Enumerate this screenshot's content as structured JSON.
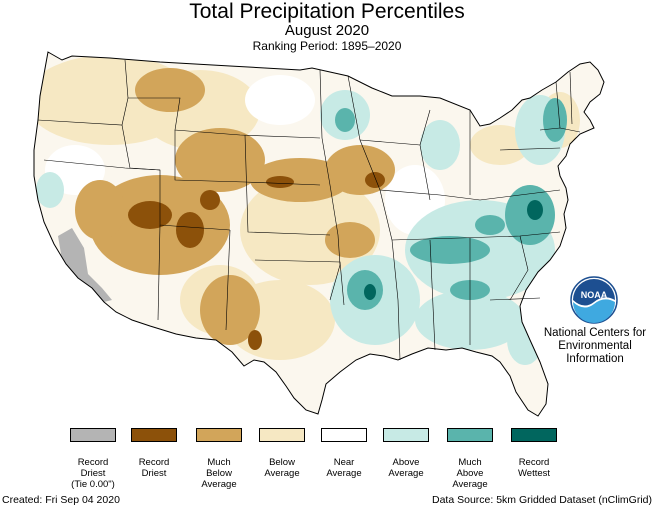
{
  "title": "Total Precipitation Percentiles",
  "subtitle": "August 2020",
  "ranking_period": "Ranking Period: 1895–2020",
  "agency": {
    "line1": "National Centers for",
    "line2": "Environmental",
    "line3": "Information",
    "logo_text": "NOAA"
  },
  "legend": [
    {
      "label": "Record\nDriest\n(Tie 0.00\")",
      "color": "#b4b4b4"
    },
    {
      "label": "Record\nDriest",
      "color": "#8c510a"
    },
    {
      "label": "Much\nBelow\nAverage",
      "color": "#d2a55a"
    },
    {
      "label": "Below\nAverage",
      "color": "#f6e8c3"
    },
    {
      "label": "Near\nAverage",
      "color": "#ffffff"
    },
    {
      "label": "Above\nAverage",
      "color": "#c7eae5"
    },
    {
      "label": "Much\nAbove\nAverage",
      "color": "#5ab4ac"
    },
    {
      "label": "Record\nWettest",
      "color": "#01665e"
    }
  ],
  "footer": {
    "created": "Created: Fri Sep 04 2020",
    "source": "Data Source: 5km Gridded Dataset (nClimGrid)"
  }
}
